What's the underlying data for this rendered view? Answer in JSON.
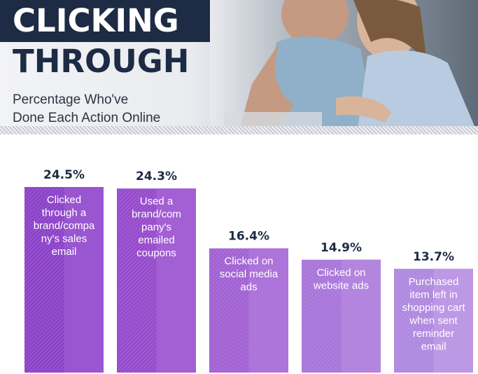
{
  "header": {
    "title_line1": "CLICKING",
    "title_line2": "THROUGH",
    "subtitle_line1": "Percentage Who've",
    "subtitle_line2": "Done Each Action Online"
  },
  "colors": {
    "title_dark": "#1d2b44",
    "bar_base": "#8a3fc7",
    "bar_lightest": "#ad86df",
    "value_text": "#1d2b44"
  },
  "chart_data": {
    "type": "bar",
    "title": "CLICKING THROUGH",
    "subtitle": "Percentage Who've Done Each Action Online",
    "categories": [
      [
        "Clicked",
        "through a",
        "brand/compa",
        "ny's sales",
        "email"
      ],
      [
        "Used a",
        "brand/com",
        "pany's",
        "emailed",
        "coupons"
      ],
      [
        "Clicked on",
        "social media",
        "ads"
      ],
      [
        "Clicked on",
        "website ads"
      ],
      [
        "Purchased",
        "item left in",
        "shopping cart",
        "when sent",
        "reminder",
        "email"
      ]
    ],
    "values": [
      24.5,
      24.3,
      16.4,
      14.9,
      13.7
    ],
    "value_labels": [
      "24.5%",
      "24.3%",
      "16.4%",
      "14.9%",
      "13.7%"
    ],
    "unit": "%",
    "ylim": [
      0,
      30
    ],
    "grid": false,
    "legend": "none"
  }
}
